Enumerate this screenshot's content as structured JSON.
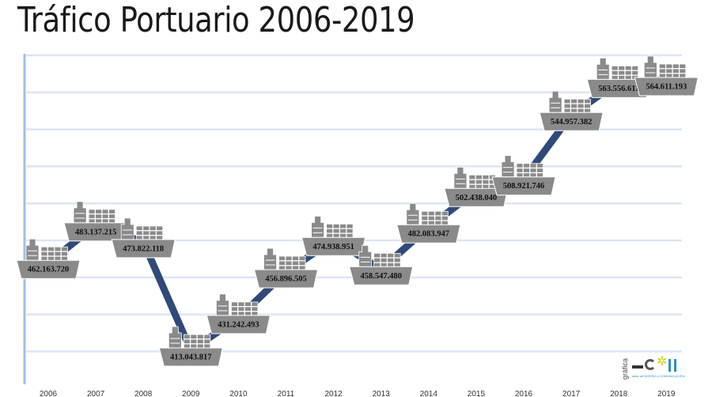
{
  "chart_data": {
    "type": "line",
    "title": "Tráfico Portuario 2006-2019",
    "x": [
      "2006",
      "2007",
      "2008",
      "2009",
      "2010",
      "2011",
      "2012",
      "2013",
      "2014",
      "2015",
      "2016",
      "2017",
      "2018",
      "2019"
    ],
    "series": [
      {
        "values": [
          462163720,
          483137215,
          473822118,
          413043817,
          431242493,
          456896505,
          474938951,
          458547480,
          482083947,
          502438040,
          508921746,
          544957382,
          563556611,
          564611193
        ],
        "labels": [
          "462.163.720",
          "483.137.215",
          "473.822.118",
          "413.043.817",
          "431.242.493",
          "456.896.505",
          "474.938.951",
          "458.547.480",
          "482.083.947",
          "502.438.040",
          "508.921.746",
          "544.957.382",
          "563.556.611",
          "564.611.193"
        ]
      }
    ],
    "grid": true,
    "colors": {
      "line": "#2f4a7a",
      "ship": "#8a8a8a",
      "grid": "#dde5f3",
      "axis": "#9fc0e6"
    }
  },
  "logo": {
    "label": "gráfica",
    "tagline": "taller de DISEÑO y COMUNICACIÓN"
  }
}
